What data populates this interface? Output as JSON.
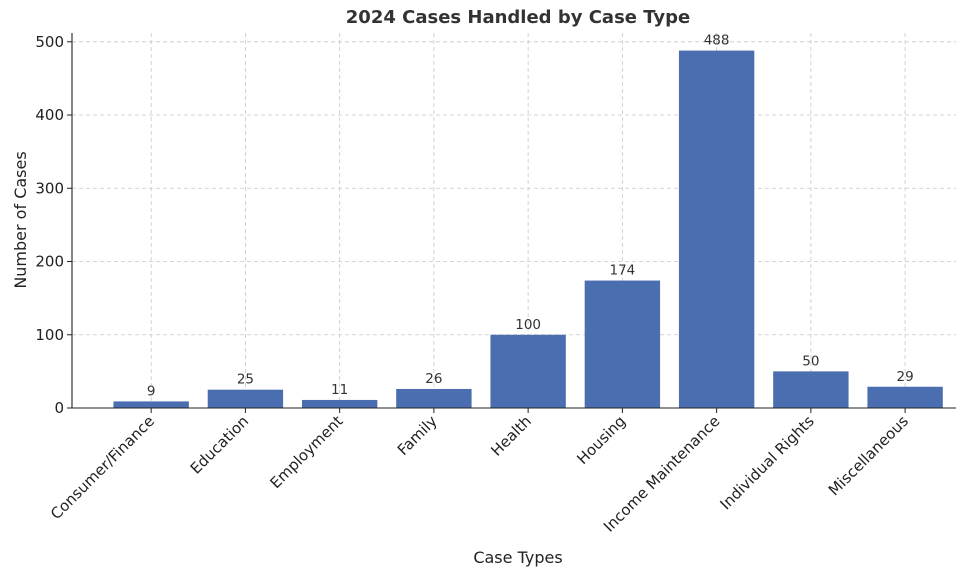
{
  "chart_data": {
    "type": "bar",
    "title": "2024 Cases Handled by Case Type",
    "xlabel": "Case Types",
    "ylabel": "Number of Cases",
    "categories": [
      "Consumer/Finance",
      "Education",
      "Employment",
      "Family",
      "Health",
      "Housing",
      "Income Maintenance",
      "Individual Rights",
      "Miscellaneous"
    ],
    "values": [
      9,
      25,
      11,
      26,
      100,
      174,
      488,
      50,
      29
    ],
    "ylim": [
      0,
      512
    ],
    "yticks": [
      0,
      100,
      200,
      300,
      400,
      500
    ],
    "grid": true,
    "bar_color": "#4a6eb0"
  }
}
